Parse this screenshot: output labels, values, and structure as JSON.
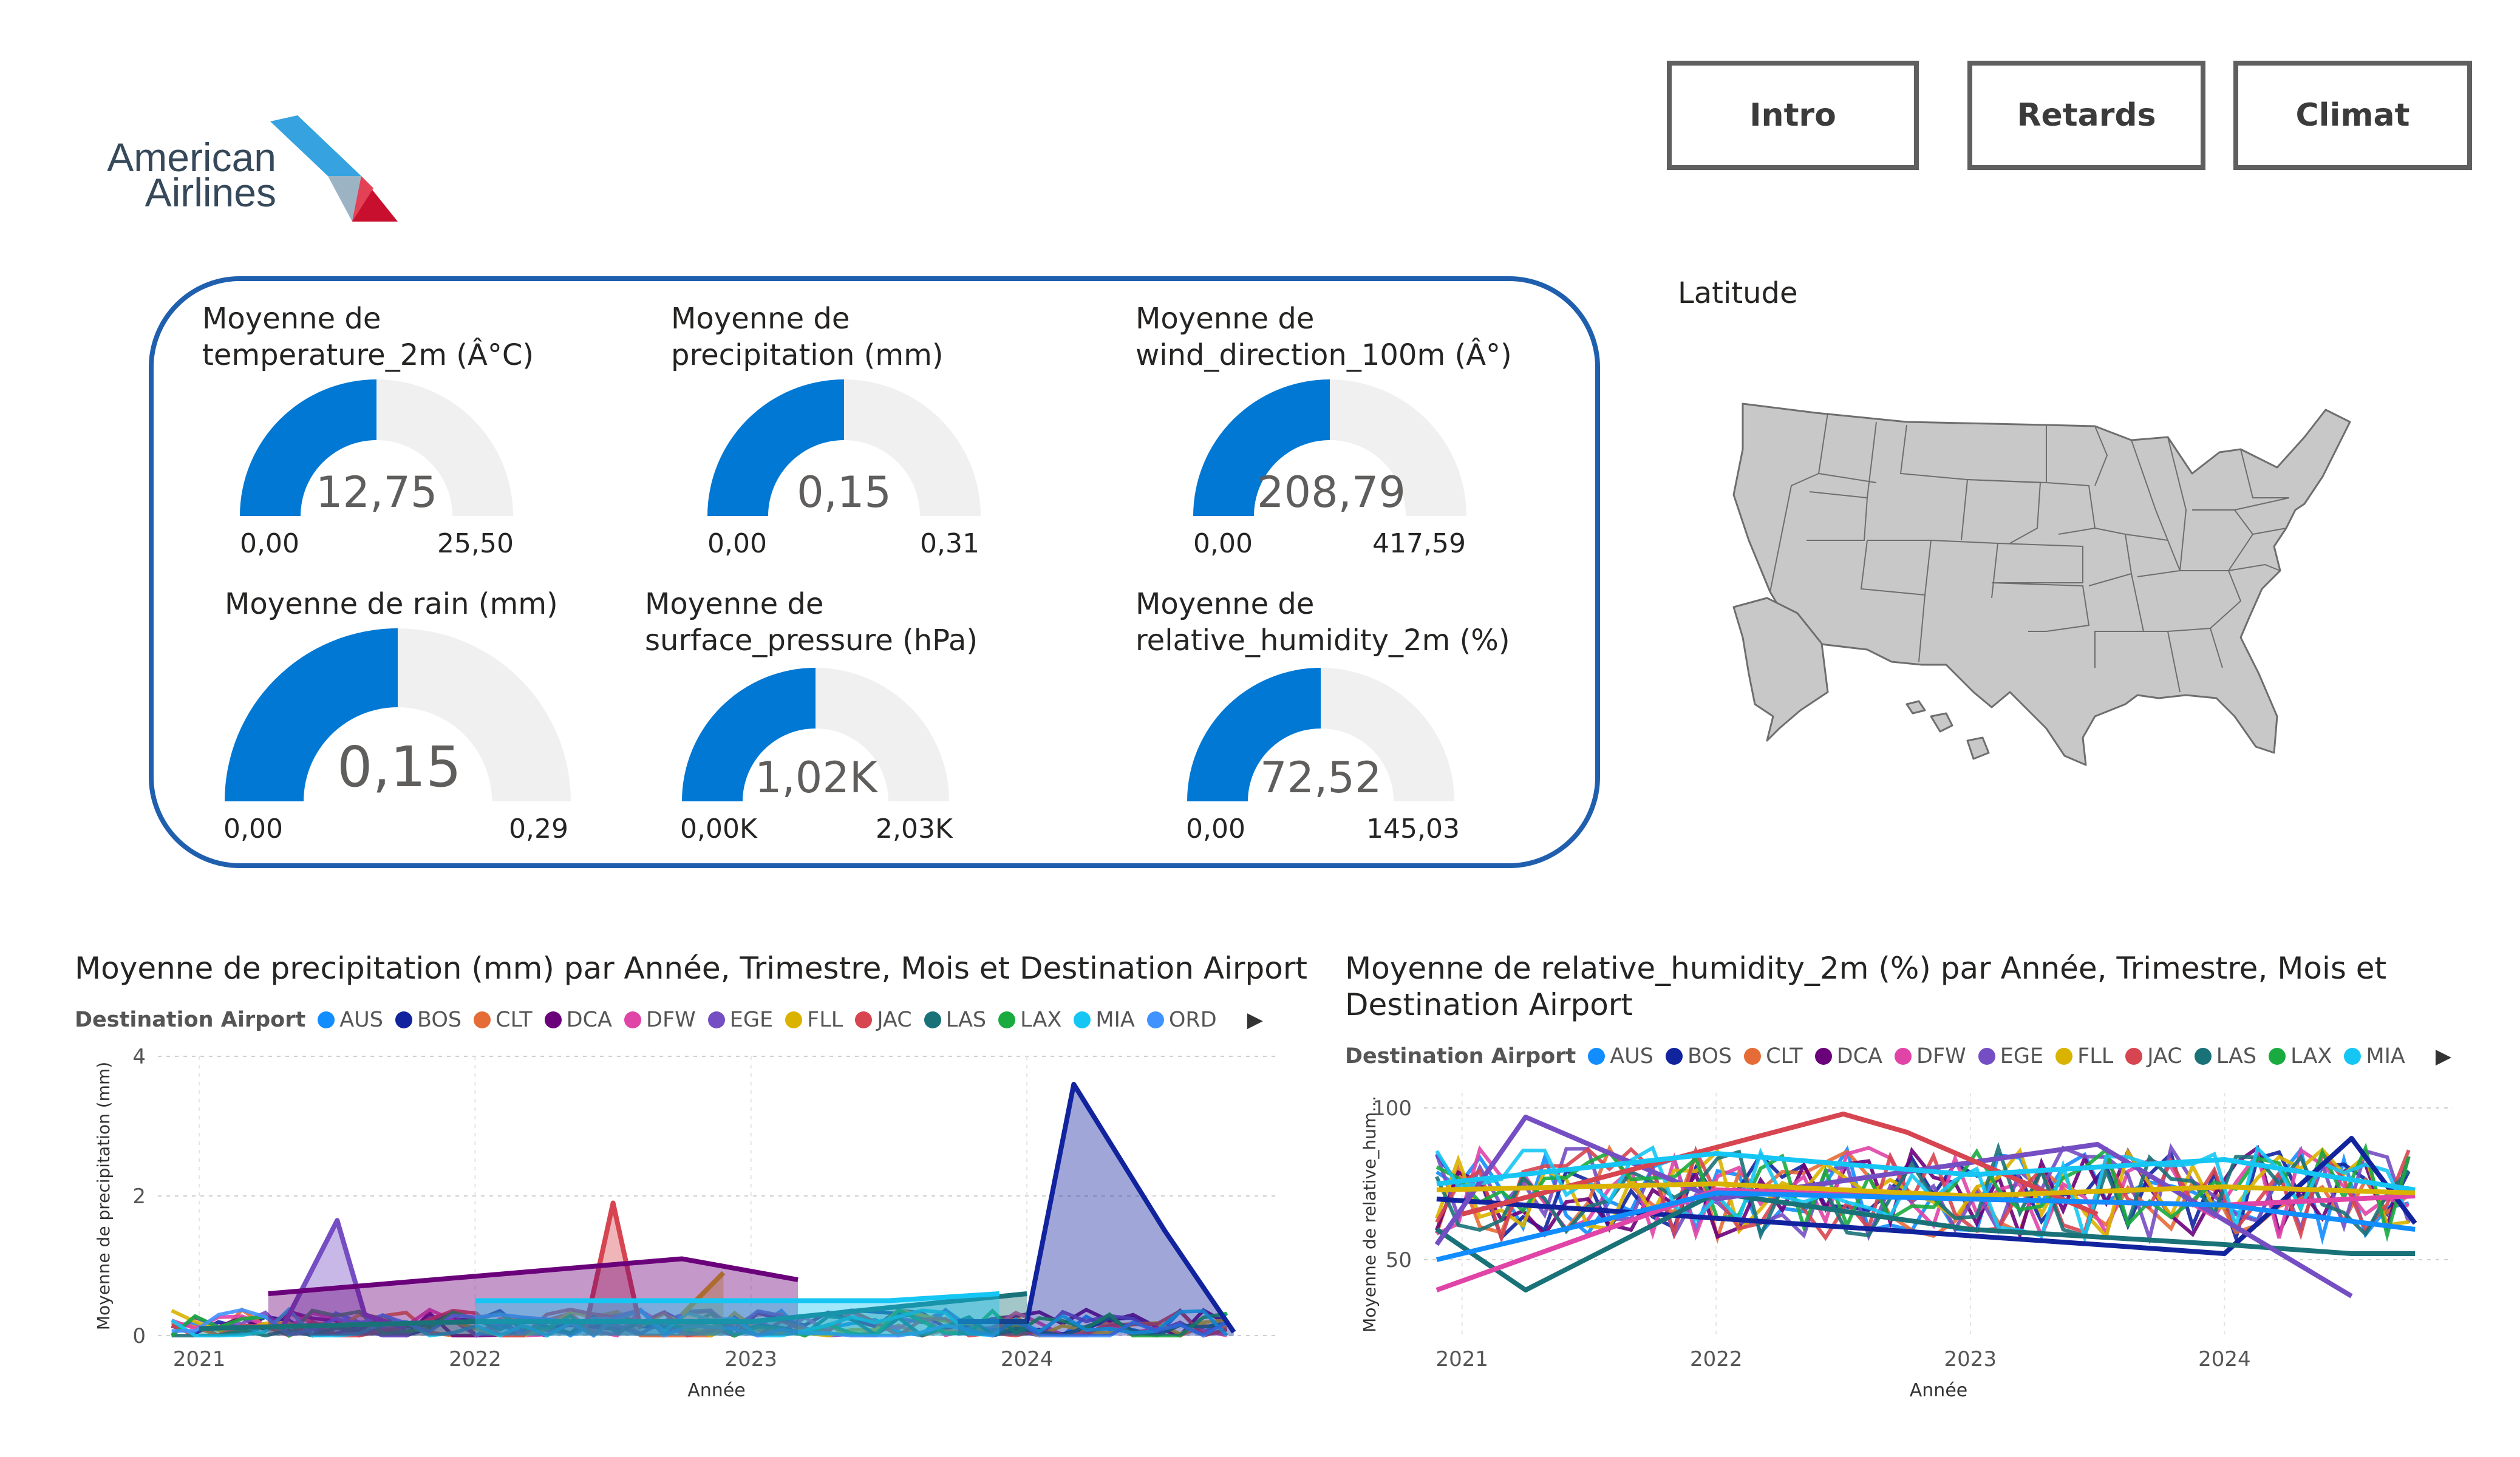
{
  "header": {
    "logo_line1": "American",
    "logo_line2": "Airlines",
    "nav": [
      {
        "label": "Intro"
      },
      {
        "label": "Retards"
      },
      {
        "label": "Climat"
      }
    ]
  },
  "gauges": [
    {
      "title": "Moyenne de temperature_2m (Â°C)",
      "value": "12,75",
      "min": "0,00",
      "max": "25,50",
      "fraction": 0.5
    },
    {
      "title": "Moyenne de precipitation (mm)",
      "value": "0,15",
      "min": "0,00",
      "max": "0,31",
      "fraction": 0.5
    },
    {
      "title": "Moyenne de wind_direction_100m (Â°)",
      "value": "208,79",
      "min": "0,00",
      "max": "417,59",
      "fraction": 0.5
    },
    {
      "title": "Moyenne de rain (mm)",
      "value": "0,15",
      "min": "0,00",
      "max": "0,29",
      "fraction": 0.5
    },
    {
      "title": "Moyenne de surface_pressure (hPa)",
      "value": "1,02K",
      "min": "0,00K",
      "max": "2,03K",
      "fraction": 0.5
    },
    {
      "title": "Moyenne de relative_humidity_2m (%)",
      "value": "72,52",
      "min": "0,00",
      "max": "145,03",
      "fraction": 0.5
    }
  ],
  "map": {
    "title": "Latitude"
  },
  "colors": {
    "accent": "#0078d4",
    "gauge_track": "#f0f0f0",
    "frame": "#1f5fae",
    "map_fill": "#c8c8c8",
    "AUS": "#118dff",
    "BOS": "#12239e",
    "CLT": "#e66c37",
    "DCA": "#6b007b",
    "DFW": "#e044a7",
    "EGE": "#744ec2",
    "FLL": "#d9b300",
    "JAC": "#d64550",
    "LAS": "#197278",
    "LAX": "#1aab40",
    "MIA": "#15c6f4",
    "ORD": "#4092ff"
  },
  "charts": {
    "precip": {
      "title": "Moyenne de precipitation (mm) par Année, Trimestre, Mois et Destination Airport",
      "legend_title": "Destination Airport",
      "legend": [
        "AUS",
        "BOS",
        "CLT",
        "DCA",
        "DFW",
        "EGE",
        "FLL",
        "JAC",
        "LAS",
        "LAX",
        "MIA",
        "ORD"
      ]
    },
    "humid": {
      "title_line1": "Moyenne de relative_humidity_2m (%) par Année, Trimestre, Mois et",
      "title_line2": "Destination Airport",
      "legend_title": "Destination Airport",
      "legend": [
        "AUS",
        "BOS",
        "CLT",
        "DCA",
        "DFW",
        "EGE",
        "FLL",
        "JAC",
        "LAS",
        "LAX",
        "MIA"
      ]
    }
  },
  "chart_data": [
    {
      "type": "area",
      "title": "Moyenne de precipitation (mm) par Année, Trimestre, Mois et Destination Airport",
      "xlabel": "Année",
      "ylabel": "Moyenne de precipitation (mm)",
      "x_ticks": [
        "2021",
        "2022",
        "2023",
        "2024"
      ],
      "y_ticks": [
        "0",
        "2",
        "4"
      ],
      "ylim": [
        0,
        4
      ],
      "grid": true,
      "legend_position": "top",
      "series": [
        {
          "name": "BOS",
          "x": [
            2023.75,
            2024.0,
            2024.17,
            2024.5,
            2024.75
          ],
          "values": [
            0.2,
            0.2,
            3.6,
            1.5,
            0.05
          ]
        },
        {
          "name": "EGE",
          "x": [
            2021.3,
            2021.5,
            2021.6,
            2021.75
          ],
          "values": [
            0.1,
            1.65,
            0.3,
            0.1
          ]
        },
        {
          "name": "JAC",
          "x": [
            2022.4,
            2022.5,
            2022.6
          ],
          "values": [
            0.1,
            1.9,
            0.1
          ]
        },
        {
          "name": "FLL",
          "x": [
            2022.75,
            2022.9
          ],
          "values": [
            0.3,
            0.9
          ]
        },
        {
          "name": "DCA",
          "x": [
            2021.25,
            2022.75,
            2023.17
          ],
          "values": [
            0.6,
            1.1,
            0.8
          ]
        },
        {
          "name": "LAS",
          "x": [
            2021.0,
            2022.0,
            2023.0,
            2024.0
          ],
          "values": [
            0.1,
            0.2,
            0.2,
            0.6
          ]
        },
        {
          "name": "MIA",
          "x": [
            2022.0,
            2023.5,
            2023.9
          ],
          "values": [
            0.5,
            0.5,
            0.6
          ]
        }
      ]
    },
    {
      "type": "line",
      "title": "Moyenne de relative_humidity_2m (%) par Année, Trimestre, Mois et Destination Airport",
      "xlabel": "Année",
      "ylabel": "Moyenne de relative_hum...",
      "x_ticks": [
        "2021",
        "2022",
        "2023",
        "2024"
      ],
      "y_ticks": [
        "50",
        "100"
      ],
      "ylim": [
        25,
        105
      ],
      "grid": true,
      "legend_position": "top",
      "series": [
        {
          "name": "BOS",
          "x": [
            2020.9,
            2023.5,
            2024.0,
            2024.5,
            2024.75
          ],
          "values": [
            70,
            55,
            52,
            90,
            62
          ]
        },
        {
          "name": "LAS",
          "x": [
            2020.9,
            2021.25,
            2022.0,
            2023.0,
            2024.0,
            2024.5,
            2024.75
          ],
          "values": [
            60,
            40,
            72,
            60,
            55,
            52,
            52
          ]
        },
        {
          "name": "EGE",
          "x": [
            2020.9,
            2021.25,
            2022.0,
            2023.5,
            2024.5
          ],
          "values": [
            55,
            97,
            70,
            88,
            38
          ]
        },
        {
          "name": "JAC",
          "x": [
            2021.0,
            2022.5,
            2022.75,
            2023.5
          ],
          "values": [
            65,
            98,
            92,
            65
          ]
        },
        {
          "name": "MIA",
          "x": [
            2020.9,
            2022.0,
            2023.0,
            2024.0,
            2024.75
          ],
          "values": [
            75,
            85,
            78,
            83,
            73
          ]
        },
        {
          "name": "DFW",
          "x": [
            2020.9,
            2022.0,
            2023.0,
            2024.0,
            2024.75
          ],
          "values": [
            40,
            73,
            70,
            68,
            71
          ]
        },
        {
          "name": "FLL",
          "x": [
            2020.9,
            2022.0,
            2023.0,
            2024.0,
            2024.75
          ],
          "values": [
            73,
            75,
            71,
            74,
            72
          ]
        },
        {
          "name": "AUS",
          "x": [
            2020.9,
            2022.0,
            2023.0,
            2024.0,
            2024.75
          ],
          "values": [
            50,
            72,
            70,
            68,
            60
          ]
        }
      ]
    }
  ]
}
